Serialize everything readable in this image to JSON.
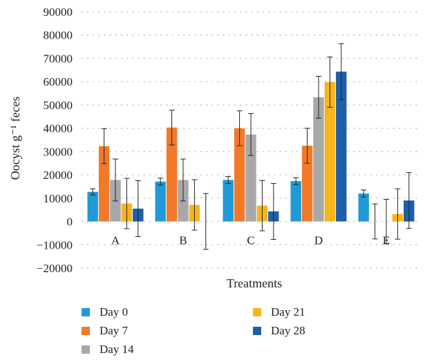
{
  "chart_data": {
    "type": "bar",
    "title": "",
    "xlabel": "Treatments",
    "ylabel": "Oocyst g⁻¹ feces",
    "ylim": [
      -20000,
      90000
    ],
    "yticks": [
      -20000,
      -10000,
      0,
      10000,
      20000,
      30000,
      40000,
      50000,
      60000,
      70000,
      80000,
      90000
    ],
    "ytick_labels": [
      "−20000",
      "−10000",
      "0",
      "10000",
      "20000",
      "30000",
      "40000",
      "50000",
      "60000",
      "70000",
      "80000",
      "90000"
    ],
    "grid": true,
    "legend_position": "bottom",
    "categories": [
      "A",
      "B",
      "C",
      "D",
      "E"
    ],
    "series": [
      {
        "name": "Day 0",
        "color": "#1f9ad6",
        "values": [
          12700,
          17100,
          17800,
          17300,
          12000
        ],
        "error": [
          1300,
          1500,
          1500,
          1500,
          1500
        ]
      },
      {
        "name": "Day 7",
        "color": "#f07a2a",
        "values": [
          32300,
          40300,
          40000,
          32500,
          0
        ],
        "error": [
          7500,
          7500,
          7500,
          7500,
          7500
        ]
      },
      {
        "name": "Day 14",
        "color": "#a8a8a8",
        "values": [
          17800,
          17800,
          37300,
          53300,
          0
        ],
        "error": [
          9000,
          9000,
          9000,
          9000,
          9500
        ]
      },
      {
        "name": "Day 21",
        "color": "#f7b51c",
        "values": [
          7700,
          7100,
          6800,
          59800,
          3200
        ],
        "error": [
          10800,
          10800,
          10800,
          10800,
          10800
        ]
      },
      {
        "name": "Day 28",
        "color": "#1f5fa8",
        "values": [
          5500,
          0,
          4300,
          64300,
          9000
        ],
        "error": [
          12000,
          12000,
          12000,
          12000,
          12000
        ]
      }
    ]
  }
}
